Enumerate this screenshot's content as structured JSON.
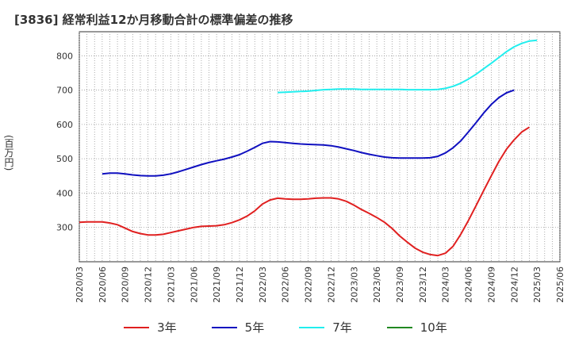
{
  "chart_data": {
    "type": "line",
    "title": "[3836]  経常利益12か月移動合計の標準偏差の推移",
    "ylabel": "(百万円)",
    "ylim": [
      200,
      870
    ],
    "yticks": [
      300,
      400,
      500,
      600,
      700,
      800
    ],
    "x_ticks": [
      "2020/03",
      "2020/06",
      "2020/09",
      "2020/12",
      "2021/03",
      "2021/06",
      "2021/09",
      "2021/12",
      "2022/03",
      "2022/06",
      "2022/09",
      "2022/12",
      "2023/03",
      "2023/06",
      "2023/09",
      "2023/12",
      "2024/03",
      "2024/06",
      "2024/09",
      "2024/12",
      "2025/03",
      "2025/06"
    ],
    "grid": true,
    "legend_position": "bottom",
    "series": [
      {
        "name": "3年",
        "color": "#e02020",
        "x": [
          "2020/03",
          "2020/04",
          "2020/05",
          "2020/06",
          "2020/07",
          "2020/08",
          "2020/09",
          "2020/10",
          "2020/11",
          "2020/12",
          "2021/01",
          "2021/02",
          "2021/03",
          "2021/04",
          "2021/05",
          "2021/06",
          "2021/07",
          "2021/08",
          "2021/09",
          "2021/10",
          "2021/11",
          "2021/12",
          "2022/01",
          "2022/02",
          "2022/03",
          "2022/04",
          "2022/05",
          "2022/06",
          "2022/07",
          "2022/08",
          "2022/09",
          "2022/10",
          "2022/11",
          "2022/12",
          "2023/01",
          "2023/02",
          "2023/03",
          "2023/04",
          "2023/05",
          "2023/06",
          "2023/07",
          "2023/08",
          "2023/09",
          "2023/10",
          "2023/11",
          "2023/12",
          "2024/01",
          "2024/02",
          "2024/03",
          "2024/04",
          "2024/05",
          "2024/06",
          "2024/07",
          "2024/08",
          "2024/09",
          "2024/10",
          "2024/11",
          "2024/12",
          "2025/01",
          "2025/02",
          "2025/03"
        ],
        "values": [
          315,
          316,
          316,
          316,
          313,
          308,
          298,
          288,
          282,
          278,
          278,
          280,
          285,
          290,
          295,
          300,
          303,
          304,
          305,
          308,
          314,
          322,
          333,
          348,
          368,
          380,
          385,
          383,
          382,
          382,
          383,
          385,
          386,
          386,
          383,
          376,
          365,
          352,
          341,
          329,
          315,
          297,
          275,
          257,
          240,
          228,
          221,
          218,
          225,
          245,
          280,
          320,
          363,
          407,
          450,
          492,
          528,
          555,
          578,
          592,
          null
        ],
        "mask_last": true
      },
      {
        "name": "5年",
        "color": "#1010c0",
        "x": [
          "2020/06",
          "2020/07",
          "2020/08",
          "2020/09",
          "2020/10",
          "2020/11",
          "2020/12",
          "2021/01",
          "2021/02",
          "2021/03",
          "2021/04",
          "2021/05",
          "2021/06",
          "2021/07",
          "2021/08",
          "2021/09",
          "2021/10",
          "2021/11",
          "2021/12",
          "2022/01",
          "2022/02",
          "2022/03",
          "2022/04",
          "2022/05",
          "2022/06",
          "2022/07",
          "2022/08",
          "2022/09",
          "2022/10",
          "2022/11",
          "2022/12",
          "2023/01",
          "2023/02",
          "2023/03",
          "2023/04",
          "2023/05",
          "2023/06",
          "2023/07",
          "2023/08",
          "2023/09",
          "2023/10",
          "2023/11",
          "2023/12",
          "2024/01",
          "2024/02",
          "2024/03",
          "2024/04",
          "2024/05",
          "2024/06",
          "2024/07",
          "2024/08",
          "2024/09",
          "2024/10",
          "2024/11",
          "2024/12",
          "2025/01",
          "2025/02",
          "2025/03"
        ],
        "values": [
          456,
          458,
          458,
          456,
          453,
          451,
          450,
          450,
          452,
          456,
          462,
          469,
          476,
          483,
          489,
          494,
          499,
          505,
          512,
          522,
          533,
          545,
          550,
          549,
          547,
          545,
          543,
          542,
          541,
          540,
          538,
          534,
          529,
          524,
          518,
          513,
          509,
          505,
          503,
          502,
          502,
          502,
          502,
          503,
          507,
          517,
          532,
          552,
          578,
          605,
          633,
          658,
          678,
          692,
          700,
          null,
          null,
          null
        ]
      }
    ]
  }
}
